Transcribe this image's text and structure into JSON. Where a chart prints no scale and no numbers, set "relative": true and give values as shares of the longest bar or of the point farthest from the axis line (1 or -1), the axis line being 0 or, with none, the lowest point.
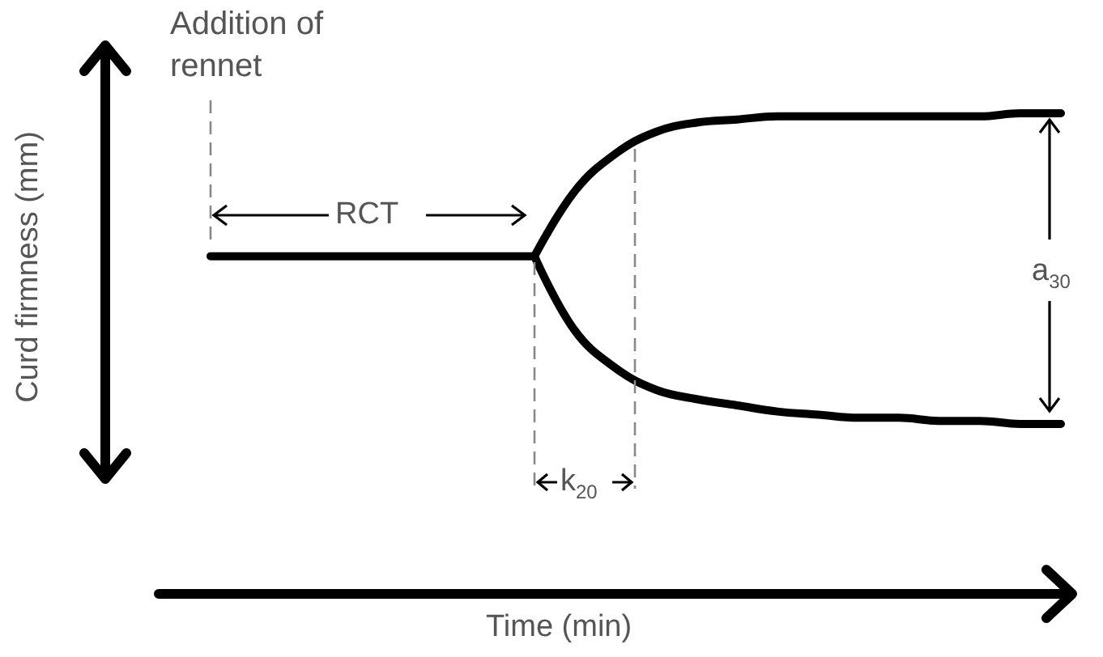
{
  "chart_data": {
    "type": "line",
    "relative": true,
    "ylabel": "Curd firmness (mm)",
    "annotations": [
      "Addition of rennet",
      "RCT",
      "k$_{20}$",
      "a$_{30}$",
      "Time (min)"
    ],
    "categories": [
      null,
      null,
      null,
      null,
      null,
      null,
      null,
      null,
      null,
      null,
      null,
      null,
      null,
      null,
      null,
      null,
      null,
      null,
      null,
      null,
      null,
      null
    ],
    "line_style": "solid",
    "series": [
      {
        "color": "#000000",
        "values": [
          0.54,
          0.54,
          0.54,
          0.54,
          0.54,
          0.54,
          0.54,
          0.54,
          0.54,
          null,
          null,
          null,
          null,
          null,
          null,
          null,
          null,
          null,
          null,
          null,
          null,
          null
        ]
      },
      {
        "color": "#000000",
        "values": [
          null,
          null,
          null,
          null,
          null,
          null,
          null,
          null,
          0.54,
          0.75,
          0.87,
          0.94,
          0.97,
          0.98,
          0.99,
          0.99,
          0.99,
          0.99,
          0.99,
          0.99,
          1,
          1
        ]
      },
      {
        "color": "#000000",
        "values": [
          null,
          null,
          null,
          null,
          null,
          null,
          null,
          null,
          0.54,
          0.3,
          0.18,
          0.11,
          0.08,
          0.06,
          0.04,
          0.03,
          0.02,
          0.02,
          0.01,
          0.01,
          0,
          0
        ]
      }
    ]
  }
}
